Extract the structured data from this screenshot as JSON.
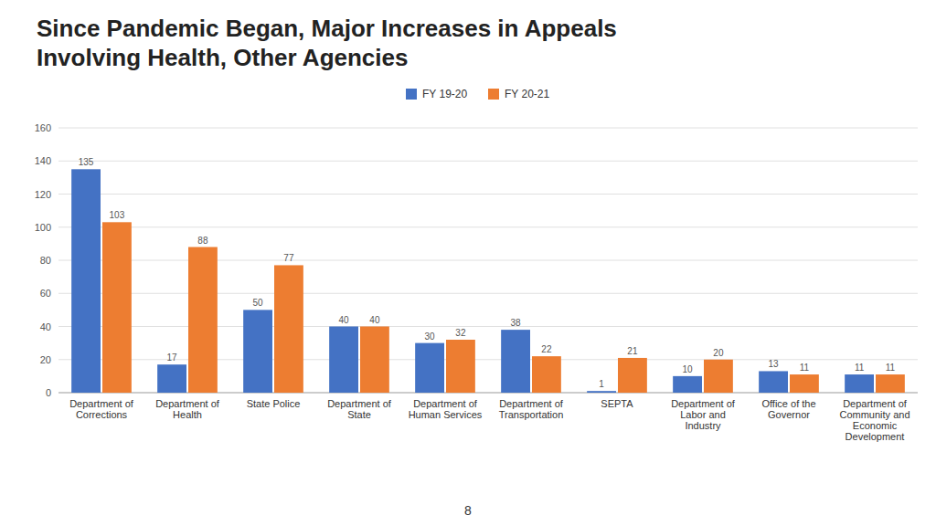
{
  "chart_data": {
    "type": "bar",
    "title": "Since Pandemic Began, Major Increases in Appeals\nInvolving Health, Other Agencies",
    "categories": [
      "Department of\nCorrections",
      "Department of\nHealth",
      "State Police",
      "Department of\nState",
      "Department of\nHuman Services",
      "Department of\nTransportation",
      "SEPTA",
      "Department of\nLabor and\nIndustry",
      "Office of the\nGovernor",
      "Department of\nCommunity and\nEconomic\nDevelopment"
    ],
    "series": [
      {
        "name": "FY 19-20",
        "color": "#4472c4",
        "values": [
          135,
          17,
          50,
          40,
          30,
          38,
          1,
          10,
          13,
          11
        ]
      },
      {
        "name": "FY 20-21",
        "color": "#ed7d31",
        "values": [
          103,
          88,
          77,
          40,
          32,
          22,
          21,
          20,
          11,
          11
        ]
      }
    ],
    "ylim": [
      0,
      160
    ],
    "yticks": [
      0,
      20,
      40,
      60,
      80,
      100,
      120,
      140,
      160
    ],
    "grid": true,
    "legend": "top",
    "data_labels": true,
    "annotations": [
      "8"
    ]
  }
}
